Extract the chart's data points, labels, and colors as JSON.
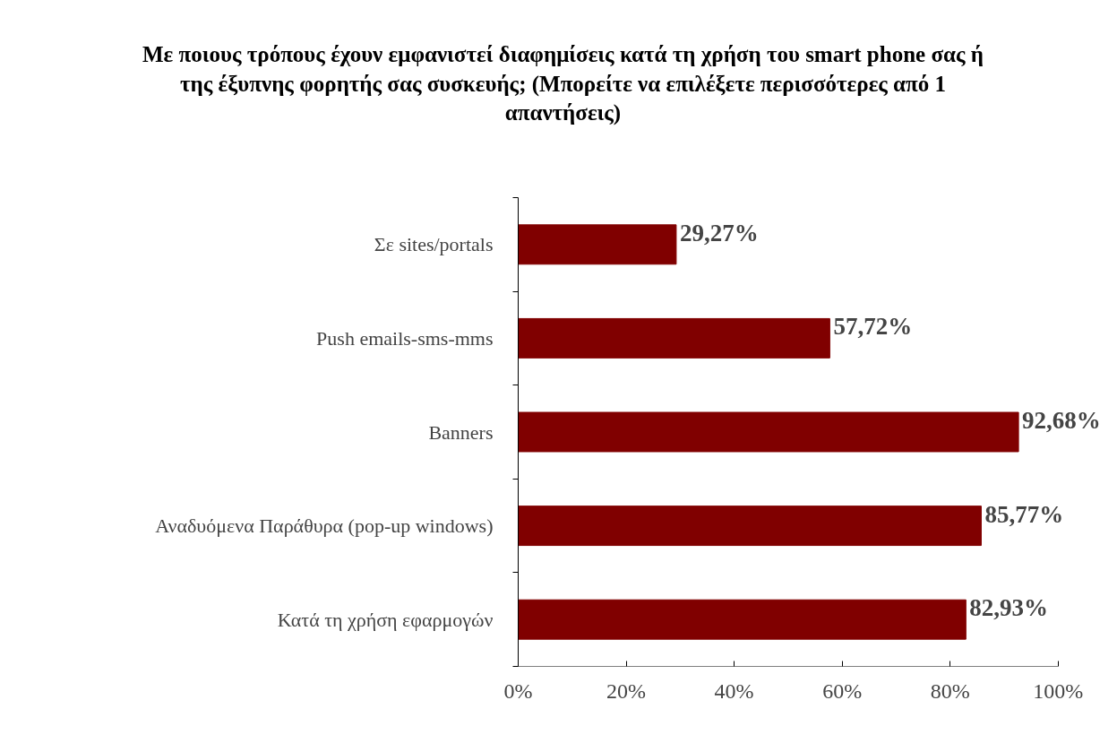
{
  "chart_data": {
    "type": "bar",
    "orientation": "horizontal",
    "title": "Με ποιους τρόπους έχουν εμφανιστεί διαφημίσεις κατά τη χρήση του smart phone σας ή της έξυπνης φορητής σας συσκευής; (Μπορείτε να επιλέξετε περισσότερες από 1 απαντήσεις)",
    "categories": [
      "Σε sites/portals",
      "Push emails-sms-mms",
      "Banners",
      "Αναδυόμενα Παράθυρα (pop-up windows)",
      "Κατά τη χρήση εφαρμογών"
    ],
    "values": [
      29.27,
      57.72,
      92.68,
      85.77,
      82.93
    ],
    "value_labels": [
      "29,27%",
      "57,72%",
      "92,68%",
      "85,77%",
      "82,93%"
    ],
    "color": "#800000",
    "xlim": [
      0,
      100
    ],
    "xticks": [
      {
        "value": 0,
        "label": "0%"
      },
      {
        "value": 20,
        "label": "20%"
      },
      {
        "value": 40,
        "label": "40%"
      },
      {
        "value": 60,
        "label": "60%"
      },
      {
        "value": 80,
        "label": "80%"
      },
      {
        "value": 100,
        "label": "100%"
      }
    ],
    "grid": false
  }
}
